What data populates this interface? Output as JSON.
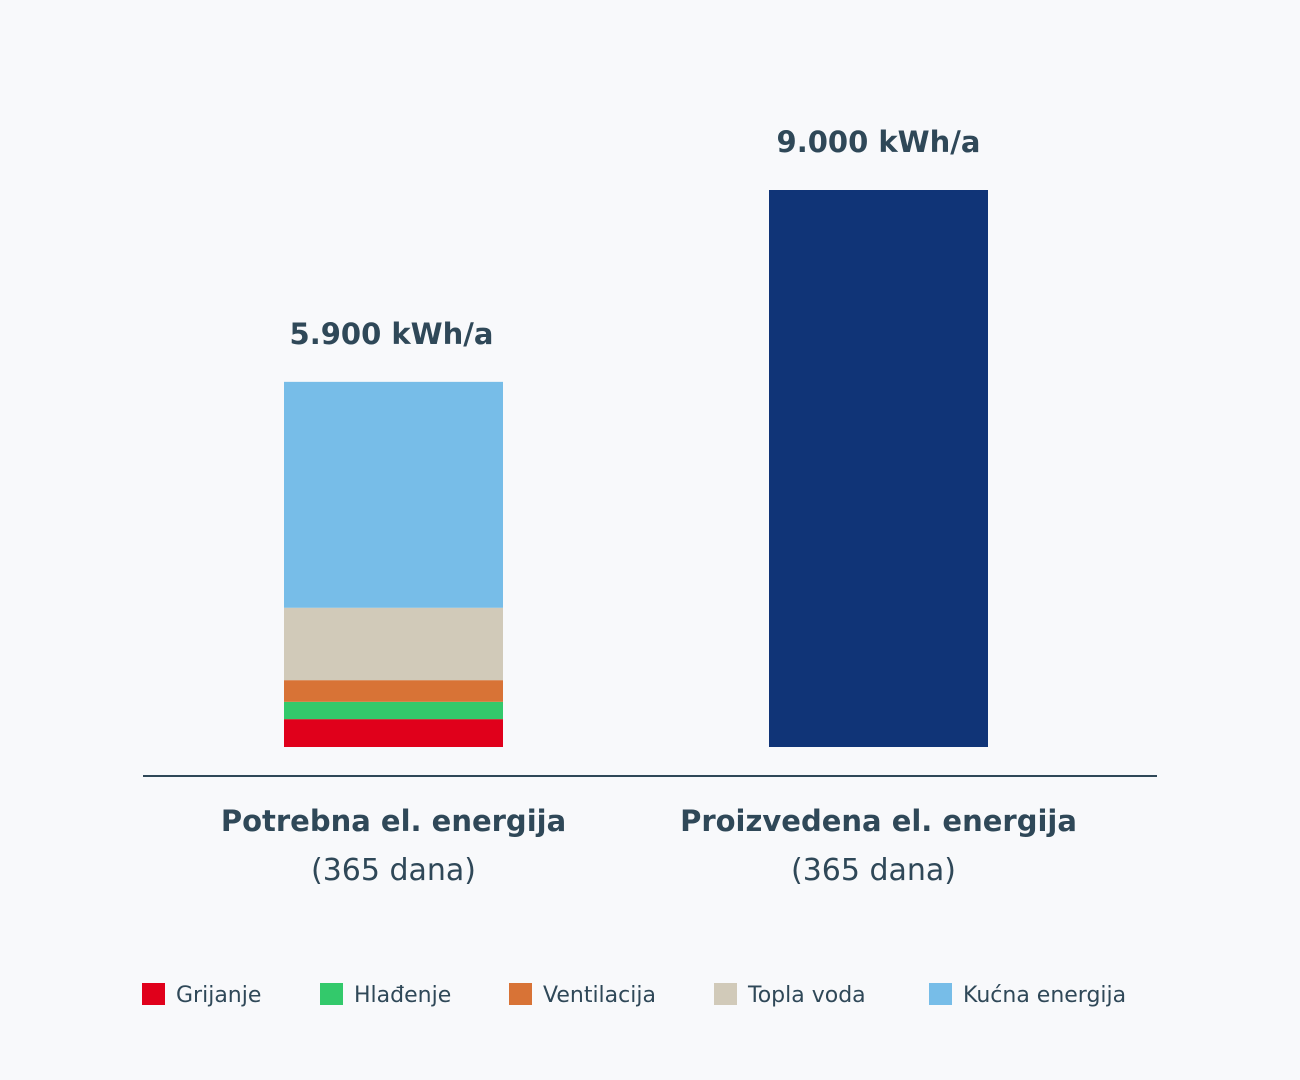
{
  "chart_data": {
    "type": "bar",
    "stacked": true,
    "categories": [
      "Potrebna el. energija",
      "Proizvedena el. energija"
    ],
    "category_subtitles": [
      "(365 dana)",
      "(365 dana)"
    ],
    "totals": [
      "5.900 kWh/a",
      "9.000 kWh/a"
    ],
    "unit": "kWh/a",
    "ylim": [
      0,
      9000
    ],
    "grid": false,
    "legend_position": "bottom",
    "series": [
      {
        "name": "Grijanje",
        "color": "#e0001b",
        "values": [
          450,
          0
        ]
      },
      {
        "name": "Hlađenje",
        "color": "#33c96b",
        "values": [
          280,
          0
        ]
      },
      {
        "name": "Ventilacija",
        "color": "#d87336",
        "values": [
          350,
          0
        ]
      },
      {
        "name": "Topla voda",
        "color": "#d1cab9",
        "values": [
          1170,
          0
        ]
      },
      {
        "name": "Kućna energija",
        "color": "#77bde8",
        "values": [
          3650,
          0
        ]
      }
    ],
    "produced": {
      "values": [
        0,
        9000
      ],
      "color": "#103477"
    },
    "axis_color": "#2f4858"
  }
}
